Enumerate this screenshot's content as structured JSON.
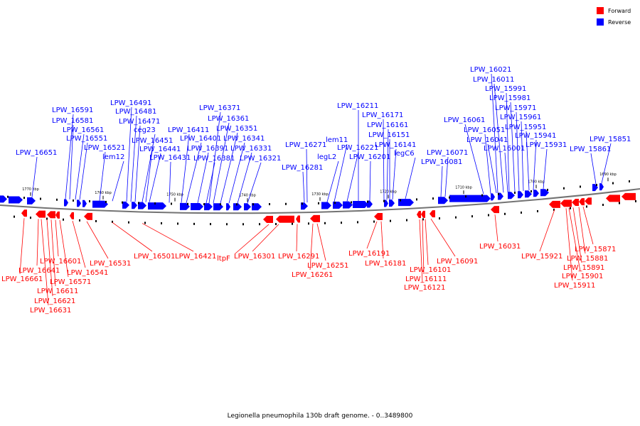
{
  "legend": [
    {
      "label": "Forward",
      "color": "#ff0000"
    },
    {
      "label": "Reverse",
      "color": "#0000ff"
    }
  ],
  "caption": "Legionella pneumophila 130b draft genome. - 0..3489800",
  "scale_ticks": [
    "1770 kbp",
    "1760 kbp",
    "1750 kbp",
    "1740 kbp",
    "1730 kbp",
    "1720 kbp",
    "1710 kbp",
    "1700 kbp",
    "1690 kbp"
  ],
  "reverse_labels": [
    "LPW_16651",
    "LPW_16591",
    "LPW_16581",
    "LPW_16561",
    "LPW_16551",
    "LPW_16521",
    "lem12",
    "LPW_16491",
    "LPW_16481",
    "LPW_16471",
    "ceg23",
    "LPW_16451",
    "LPW_16441",
    "LPW_16431",
    "LPW_16411",
    "LPW_16401",
    "LPW_16391",
    "LPW_16381",
    "LPW_16371",
    "LPW_16361",
    "LPW_16351",
    "LPW_16341",
    "LPW_16331",
    "LPW_16321",
    "LPW_16281",
    "LPW_16271",
    "lem11",
    "legL2",
    "LPW_16221",
    "LPW_16211",
    "LPW_16201",
    "LPW_16171",
    "LPW_16161",
    "LPW_16151",
    "LPW_16141",
    "legC6",
    "LPW_16081",
    "LPW_16071",
    "LPW_16061",
    "LPW_16051",
    "LPW_16041",
    "LPW_16021",
    "LPW_16011",
    "LPW_16001",
    "LPW_15991",
    "LPW_15981",
    "LPW_15971",
    "LPW_15961",
    "LPW_15951",
    "LPW_15941",
    "LPW_15931",
    "LPW_15861",
    "LPW_15851"
  ],
  "forward_labels": [
    "LPW_16661",
    "LPW_16641",
    "LPW_16631",
    "LPW_16621",
    "LPW_16611",
    "LPW_16601",
    "LPW_16571",
    "LPW_16541",
    "LPW_16531",
    "LPW_16501",
    "LPW_16421",
    "ltpF",
    "LPW_16301",
    "LPW_16291",
    "LPW_16261",
    "LPW_16251",
    "LPW_16191",
    "LPW_16181",
    "LPW_16121",
    "LPW_16111",
    "LPW_16101",
    "LPW_16091",
    "LPW_16031",
    "LPW_15921",
    "LPW_15911",
    "LPW_15901",
    "LPW_15891",
    "LPW_15881",
    "LPW_15871"
  ]
}
